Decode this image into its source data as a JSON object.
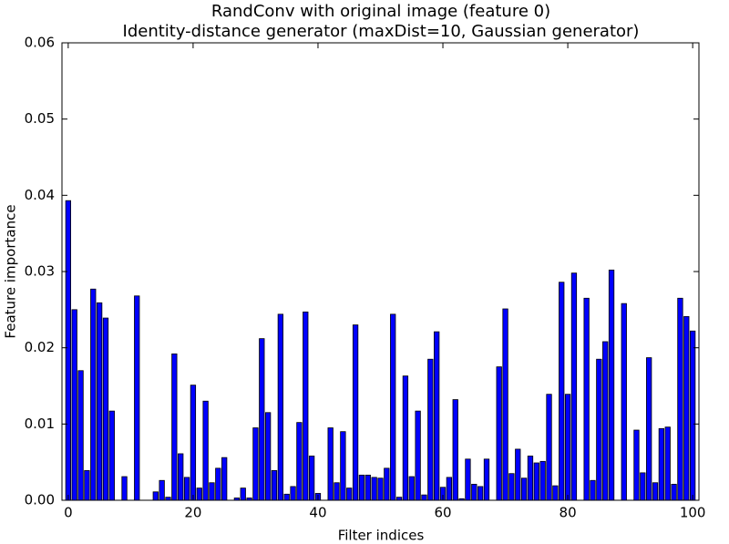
{
  "chart_data": {
    "type": "bar",
    "title": "RandConv with original image (feature 0)",
    "subtitle": "Identity-distance generator (maxDist=10, Gaussian generator)",
    "xlabel": "Filter indices",
    "ylabel": "Feature importance",
    "color": "#0000ff",
    "x": [
      0,
      1,
      2,
      3,
      4,
      5,
      6,
      7,
      8,
      9,
      10,
      11,
      12,
      13,
      14,
      15,
      16,
      17,
      18,
      19,
      20,
      21,
      22,
      23,
      24,
      25,
      26,
      27,
      28,
      29,
      30,
      31,
      32,
      33,
      34,
      35,
      36,
      37,
      38,
      39,
      40,
      41,
      42,
      43,
      44,
      45,
      46,
      47,
      48,
      49,
      50,
      51,
      52,
      53,
      54,
      55,
      56,
      57,
      58,
      59,
      60,
      61,
      62,
      63,
      64,
      65,
      66,
      67,
      68,
      69,
      70,
      71,
      72,
      73,
      74,
      75,
      76,
      77,
      78,
      79,
      80,
      81,
      82,
      83,
      84,
      85,
      86,
      87,
      88,
      89,
      90,
      91,
      92,
      93,
      94,
      95,
      96,
      97,
      98,
      99,
      100
    ],
    "values": [
      0.0393,
      0.025,
      0.017,
      0.0039,
      0.0277,
      0.0259,
      0.0239,
      0.0117,
      0,
      0.0031,
      0,
      0.0268,
      0,
      0,
      0.0011,
      0.0026,
      0.0004,
      0.0192,
      0.0061,
      0.003,
      0.0151,
      0.0016,
      0.013,
      0.0023,
      0.0042,
      0.0056,
      0,
      0.0003,
      0.0016,
      0.0003,
      0.0095,
      0.0212,
      0.0115,
      0.0039,
      0.0244,
      0.0008,
      0.0018,
      0.0102,
      0.0247,
      0.0058,
      0.0009,
      0,
      0.0095,
      0.0023,
      0.009,
      0.0016,
      0.023,
      0.0033,
      0.0033,
      0.003,
      0.0029,
      0.0042,
      0.0244,
      0.0004,
      0.0163,
      0.0031,
      0.0117,
      0.0007,
      0.0185,
      0.0221,
      0.0017,
      0.003,
      0.0132,
      0.0002,
      0.0054,
      0.0021,
      0.0018,
      0.0054,
      0,
      0.0175,
      0.0251,
      0.0035,
      0.0067,
      0.0029,
      0.0058,
      0.0049,
      0.0051,
      0.0139,
      0.0019,
      0.0286,
      0.0139,
      0.0298,
      0,
      0.0265,
      0.0026,
      0.0185,
      0.0208,
      0.0302,
      0,
      0.0258,
      0,
      0.0092,
      0.0036,
      0.0187,
      0.0023,
      0.0094,
      0.0096,
      0.0021,
      0.0265,
      0.0241,
      0.0222
    ],
    "xlim": [
      -1,
      101
    ],
    "xticks": [
      0,
      20,
      40,
      60,
      80,
      100
    ],
    "ylim": [
      0,
      0.06
    ],
    "yticks": [
      {
        "value": 0,
        "label": "0.00"
      },
      {
        "value": 0.01,
        "label": "0.01"
      },
      {
        "value": 0.02,
        "label": "0.02"
      },
      {
        "value": 0.03,
        "label": "0.03"
      },
      {
        "value": 0.04,
        "label": "0.04"
      },
      {
        "value": 0.05,
        "label": "0.05"
      },
      {
        "value": 0.06,
        "label": "0.06"
      }
    ]
  }
}
